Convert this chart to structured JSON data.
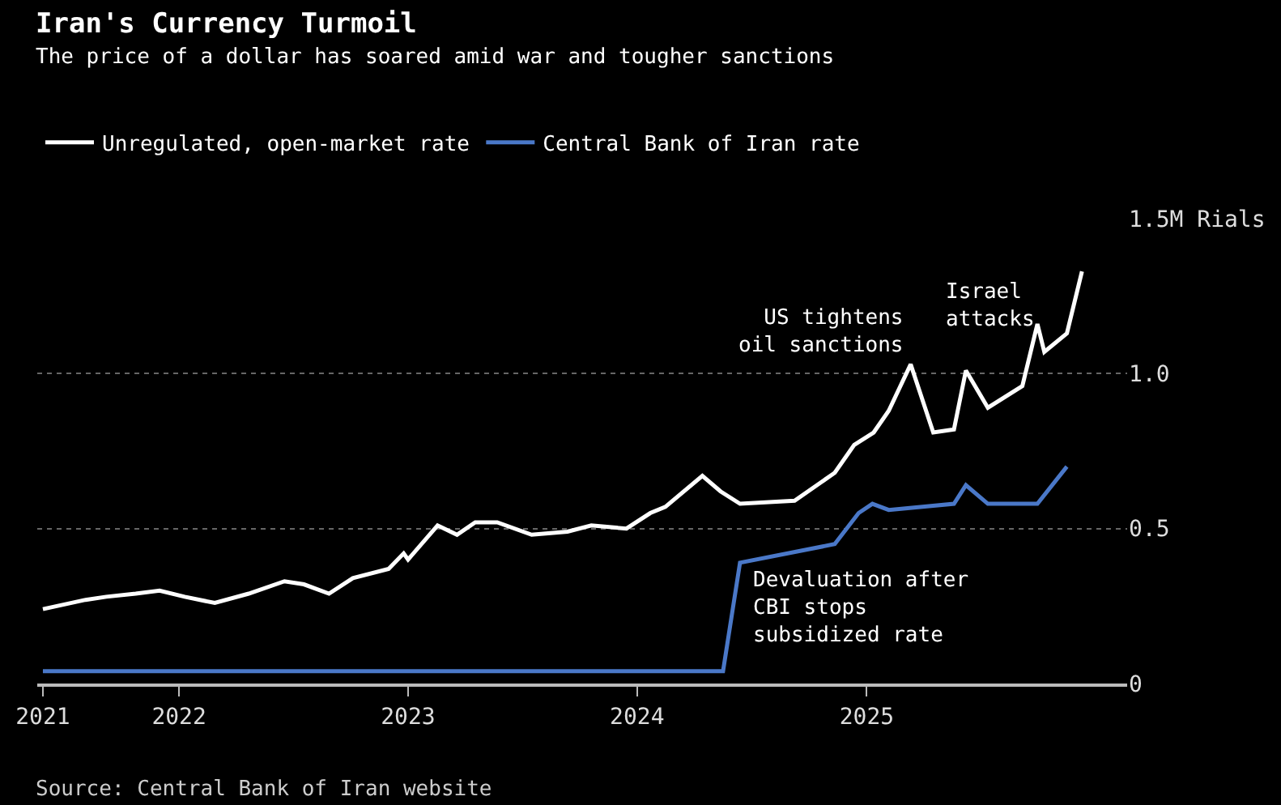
{
  "chart_data": {
    "type": "line",
    "title": "Iran's Currency Turmoil",
    "subtitle": "The price of a dollar has soared amid war and tougher sanctions",
    "series": [
      {
        "name": "Unregulated, open-market rate",
        "color": "#ffffff",
        "x": [
          "2021-05-29",
          "2021-08-05",
          "2021-09-07",
          "2021-10-24",
          "2021-12-01",
          "2022-01-10",
          "2022-02-27",
          "2022-04-22",
          "2022-06-18",
          "2022-07-19",
          "2022-08-28",
          "2022-10-05",
          "2022-12-01",
          "2022-12-25",
          "2023-01-01",
          "2023-02-17",
          "2023-03-20",
          "2023-04-18",
          "2023-05-23",
          "2023-07-17",
          "2023-09-12",
          "2023-10-20",
          "2023-12-15",
          "2024-01-22",
          "2024-02-15",
          "2024-04-14",
          "2024-05-13",
          "2024-06-13",
          "2024-09-08",
          "2024-11-11",
          "2024-12-12",
          "2025-01-12",
          "2025-02-05",
          "2025-03-12",
          "2025-04-17",
          "2025-05-20",
          "2025-06-08",
          "2025-07-13",
          "2025-09-06",
          "2025-09-30",
          "2025-10-11",
          "2025-11-16",
          "2025-12-10"
        ],
        "values": [
          0.24,
          0.27,
          0.28,
          0.29,
          0.3,
          0.28,
          0.26,
          0.29,
          0.33,
          0.32,
          0.29,
          0.34,
          0.37,
          0.42,
          0.4,
          0.51,
          0.48,
          0.52,
          0.52,
          0.48,
          0.49,
          0.51,
          0.5,
          0.55,
          0.57,
          0.67,
          0.62,
          0.58,
          0.59,
          0.68,
          0.77,
          0.81,
          0.88,
          1.03,
          0.81,
          0.82,
          1.01,
          0.89,
          0.96,
          1.16,
          1.07,
          1.13,
          1.33
        ]
      },
      {
        "name": "Central Bank of Iran rate",
        "color": "#4a78c8",
        "x": [
          "2021-05-29",
          "2024-05-17",
          "2024-06-13",
          "2024-11-11",
          "2024-12-19",
          "2025-01-10",
          "2025-02-05",
          "2025-05-20",
          "2025-06-08",
          "2025-07-13",
          "2025-09-30",
          "2025-11-16"
        ],
        "values": [
          0.04,
          0.04,
          0.39,
          0.45,
          0.55,
          0.58,
          0.56,
          0.58,
          0.64,
          0.58,
          0.58,
          0.7
        ]
      }
    ],
    "xlim": [
      "2021-05-20",
      "2026-02-20"
    ],
    "xticks": [
      {
        "value": "2021-05-29",
        "label": "2021"
      },
      {
        "value": "2022-01-01",
        "label": "2022"
      },
      {
        "value": "2023-01-01",
        "label": "2023"
      },
      {
        "value": "2024-01-01",
        "label": "2024"
      },
      {
        "value": "2025-01-01",
        "label": "2025"
      }
    ],
    "ylim": [
      0,
      1.5
    ],
    "yticks": [
      0,
      0.5,
      {
        "value": 1.0,
        "label": "1.0"
      },
      {
        "value": 1.5,
        "label": "1.5M Rials"
      }
    ],
    "grid": "y",
    "legend": "top left",
    "marker": "none",
    "line_style": "solid",
    "annotations": [
      {
        "text": "US tightens oil sanctions",
        "x": "2025-03-12",
        "y": 1.03
      },
      {
        "text": "Israel attacks",
        "x": "2025-06-08",
        "y": 1.01
      },
      {
        "text": "Devaluation after CBI stops subsidized rate",
        "x": "2024-06-13",
        "y": 0.39
      },
      "Source: Central Bank of Iran website"
    ]
  }
}
